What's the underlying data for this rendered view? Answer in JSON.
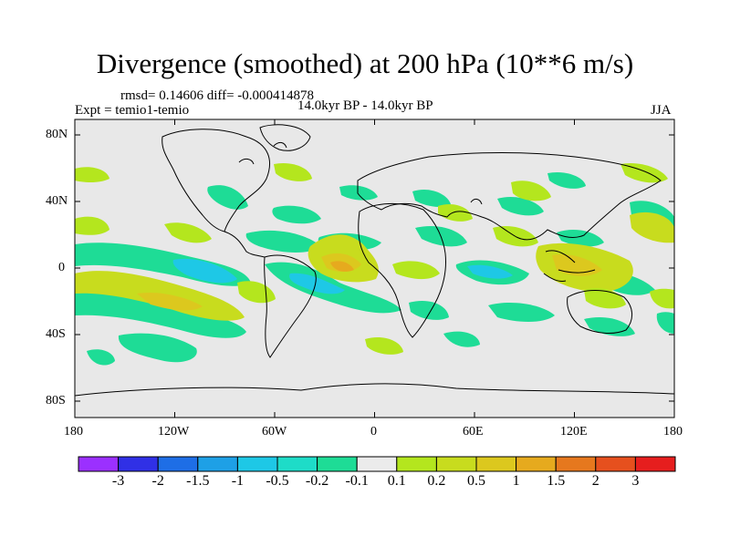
{
  "title": "Divergence (smoothed) at 200 hPa (10**6 m/s)",
  "stats": "rmsd= 0.14606 diff= -0.000414878",
  "experiment": "Expt = temio1-temio",
  "period": "14.0kyr BP - 14.0kyr BP",
  "season": "JJA",
  "map": {
    "land_color": "#e8e8e8",
    "coast_color": "#000000",
    "lat_ticks": [
      "80N",
      "40N",
      "0",
      "40S",
      "80S"
    ],
    "lon_ticks": [
      "180",
      "120W",
      "60W",
      "0",
      "60E",
      "120E",
      "180"
    ]
  },
  "colorbar": {
    "colors": [
      "#9b30ff",
      "#3030e6",
      "#1e6ee6",
      "#1ea0e6",
      "#1ec8e6",
      "#1edcc8",
      "#1edc96",
      "#ebebeb",
      "#b4e61e",
      "#c8dc1e",
      "#dcc81e",
      "#e6aa1e",
      "#e6781e",
      "#e6501e",
      "#e61e1e"
    ],
    "labels": [
      "-3",
      "-2",
      "-1.5",
      "-1",
      "-0.5",
      "-0.2",
      "-0.1",
      "0.1",
      "0.2",
      "0.5",
      "1",
      "1.5",
      "2",
      "3"
    ]
  }
}
